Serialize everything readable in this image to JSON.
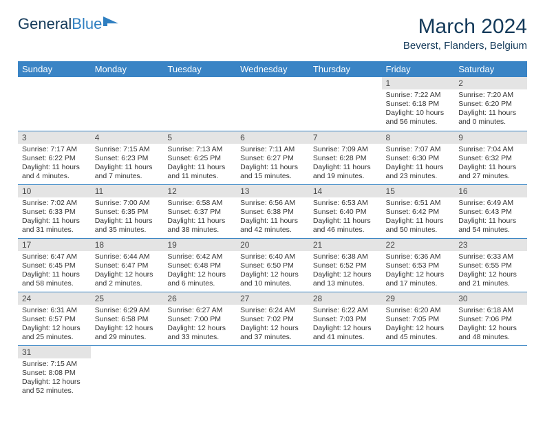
{
  "brand": {
    "part1": "General",
    "part2": "Blue"
  },
  "title": "March 2024",
  "location": "Beverst, Flanders, Belgium",
  "colors": {
    "header_bg": "#3a84c5",
    "rule": "#2f7fc1",
    "daynum_bg": "#e4e4e4",
    "text_dark": "#143a5a"
  },
  "weekdays": [
    "Sunday",
    "Monday",
    "Tuesday",
    "Wednesday",
    "Thursday",
    "Friday",
    "Saturday"
  ],
  "weeks": [
    [
      null,
      null,
      null,
      null,
      null,
      {
        "n": "1",
        "sr": "7:22 AM",
        "ss": "6:18 PM",
        "dl": "10 hours and 56 minutes."
      },
      {
        "n": "2",
        "sr": "7:20 AM",
        "ss": "6:20 PM",
        "dl": "11 hours and 0 minutes."
      }
    ],
    [
      {
        "n": "3",
        "sr": "7:17 AM",
        "ss": "6:22 PM",
        "dl": "11 hours and 4 minutes."
      },
      {
        "n": "4",
        "sr": "7:15 AM",
        "ss": "6:23 PM",
        "dl": "11 hours and 7 minutes."
      },
      {
        "n": "5",
        "sr": "7:13 AM",
        "ss": "6:25 PM",
        "dl": "11 hours and 11 minutes."
      },
      {
        "n": "6",
        "sr": "7:11 AM",
        "ss": "6:27 PM",
        "dl": "11 hours and 15 minutes."
      },
      {
        "n": "7",
        "sr": "7:09 AM",
        "ss": "6:28 PM",
        "dl": "11 hours and 19 minutes."
      },
      {
        "n": "8",
        "sr": "7:07 AM",
        "ss": "6:30 PM",
        "dl": "11 hours and 23 minutes."
      },
      {
        "n": "9",
        "sr": "7:04 AM",
        "ss": "6:32 PM",
        "dl": "11 hours and 27 minutes."
      }
    ],
    [
      {
        "n": "10",
        "sr": "7:02 AM",
        "ss": "6:33 PM",
        "dl": "11 hours and 31 minutes."
      },
      {
        "n": "11",
        "sr": "7:00 AM",
        "ss": "6:35 PM",
        "dl": "11 hours and 35 minutes."
      },
      {
        "n": "12",
        "sr": "6:58 AM",
        "ss": "6:37 PM",
        "dl": "11 hours and 38 minutes."
      },
      {
        "n": "13",
        "sr": "6:56 AM",
        "ss": "6:38 PM",
        "dl": "11 hours and 42 minutes."
      },
      {
        "n": "14",
        "sr": "6:53 AM",
        "ss": "6:40 PM",
        "dl": "11 hours and 46 minutes."
      },
      {
        "n": "15",
        "sr": "6:51 AM",
        "ss": "6:42 PM",
        "dl": "11 hours and 50 minutes."
      },
      {
        "n": "16",
        "sr": "6:49 AM",
        "ss": "6:43 PM",
        "dl": "11 hours and 54 minutes."
      }
    ],
    [
      {
        "n": "17",
        "sr": "6:47 AM",
        "ss": "6:45 PM",
        "dl": "11 hours and 58 minutes."
      },
      {
        "n": "18",
        "sr": "6:44 AM",
        "ss": "6:47 PM",
        "dl": "12 hours and 2 minutes."
      },
      {
        "n": "19",
        "sr": "6:42 AM",
        "ss": "6:48 PM",
        "dl": "12 hours and 6 minutes."
      },
      {
        "n": "20",
        "sr": "6:40 AM",
        "ss": "6:50 PM",
        "dl": "12 hours and 10 minutes."
      },
      {
        "n": "21",
        "sr": "6:38 AM",
        "ss": "6:52 PM",
        "dl": "12 hours and 13 minutes."
      },
      {
        "n": "22",
        "sr": "6:36 AM",
        "ss": "6:53 PM",
        "dl": "12 hours and 17 minutes."
      },
      {
        "n": "23",
        "sr": "6:33 AM",
        "ss": "6:55 PM",
        "dl": "12 hours and 21 minutes."
      }
    ],
    [
      {
        "n": "24",
        "sr": "6:31 AM",
        "ss": "6:57 PM",
        "dl": "12 hours and 25 minutes."
      },
      {
        "n": "25",
        "sr": "6:29 AM",
        "ss": "6:58 PM",
        "dl": "12 hours and 29 minutes."
      },
      {
        "n": "26",
        "sr": "6:27 AM",
        "ss": "7:00 PM",
        "dl": "12 hours and 33 minutes."
      },
      {
        "n": "27",
        "sr": "6:24 AM",
        "ss": "7:02 PM",
        "dl": "12 hours and 37 minutes."
      },
      {
        "n": "28",
        "sr": "6:22 AM",
        "ss": "7:03 PM",
        "dl": "12 hours and 41 minutes."
      },
      {
        "n": "29",
        "sr": "6:20 AM",
        "ss": "7:05 PM",
        "dl": "12 hours and 45 minutes."
      },
      {
        "n": "30",
        "sr": "6:18 AM",
        "ss": "7:06 PM",
        "dl": "12 hours and 48 minutes."
      }
    ],
    [
      {
        "n": "31",
        "sr": "7:15 AM",
        "ss": "8:08 PM",
        "dl": "12 hours and 52 minutes."
      },
      null,
      null,
      null,
      null,
      null,
      null
    ]
  ],
  "labels": {
    "sunrise": "Sunrise:",
    "sunset": "Sunset:",
    "daylight": "Daylight:"
  }
}
